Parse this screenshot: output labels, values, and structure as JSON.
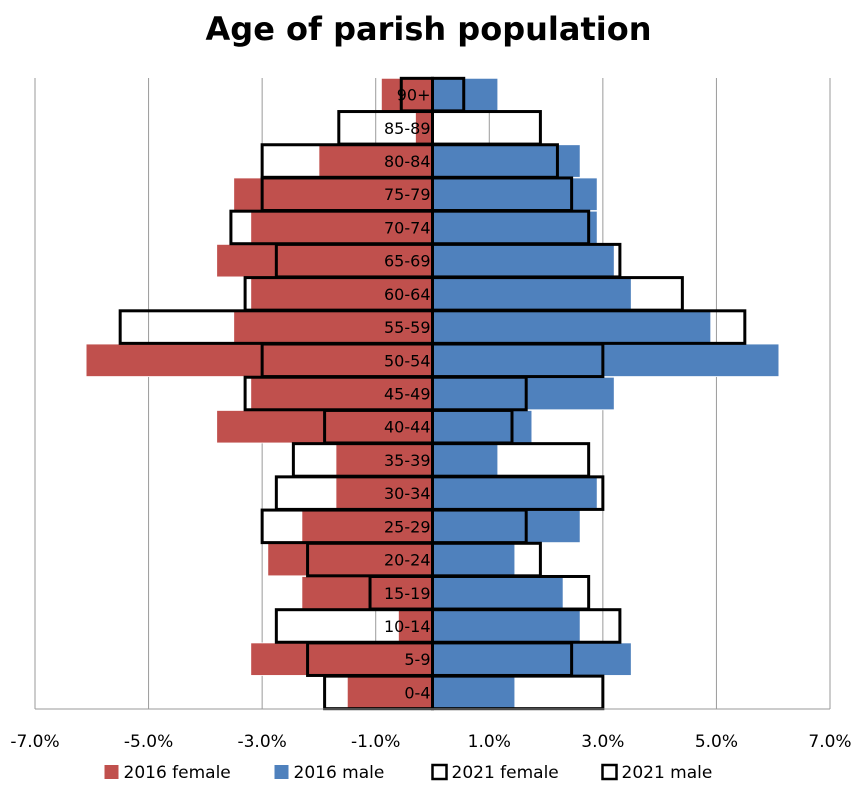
{
  "chart_data": {
    "type": "bar",
    "orientation": "horizontal",
    "title": "Age of parish population",
    "xlabel": "",
    "ylabel": "",
    "xlim": [
      -7.0,
      7.0
    ],
    "xticks": [
      "-7.0%",
      "-5.0%",
      "-3.0%",
      "-1.0%",
      "1.0%",
      "3.0%",
      "5.0%",
      "7.0%"
    ],
    "xtick_values": [
      -7,
      -5,
      -3,
      -1,
      1,
      3,
      5,
      7
    ],
    "grid": "vertical",
    "legend": "bottom",
    "categories": [
      "90+",
      "85-89",
      "80-84",
      "75-79",
      "70-74",
      "65-69",
      "60-64",
      "55-59",
      "50-54",
      "45-49",
      "40-44",
      "35-39",
      "30-34",
      "25-29",
      "20-24",
      "15-19",
      "10-14",
      "5-9",
      "0-4"
    ],
    "series": [
      {
        "name": "2016 female",
        "style": "filled",
        "color": "#c0504d",
        "values": [
          -0.9,
          -0.3,
          -2.0,
          -3.5,
          -3.2,
          -3.8,
          -3.2,
          -3.5,
          -6.1,
          -3.2,
          -3.8,
          -1.7,
          -1.7,
          -2.3,
          -2.9,
          -2.3,
          -0.6,
          -3.2,
          -1.5
        ]
      },
      {
        "name": "2016 male",
        "style": "filled",
        "color": "#4f81bd",
        "values": [
          1.15,
          0.0,
          2.6,
          2.9,
          2.9,
          3.2,
          3.5,
          4.9,
          6.1,
          3.2,
          1.75,
          1.15,
          2.9,
          2.6,
          1.45,
          2.3,
          2.6,
          3.5,
          1.45
        ]
      },
      {
        "name": "2021 female",
        "style": "outline",
        "color": "#000000",
        "values": [
          -0.55,
          -1.65,
          -3.0,
          -3.0,
          -3.55,
          -2.75,
          -3.3,
          -5.5,
          -3.0,
          -3.3,
          -1.9,
          -2.45,
          -2.75,
          -3.0,
          -2.2,
          -1.1,
          -2.75,
          -2.2,
          -1.9
        ]
      },
      {
        "name": "2021 male",
        "style": "outline",
        "color": "#000000",
        "values": [
          0.55,
          1.9,
          2.2,
          2.45,
          2.75,
          3.3,
          4.4,
          5.5,
          3.0,
          1.65,
          1.4,
          2.75,
          3.0,
          1.65,
          1.9,
          2.75,
          3.3,
          2.45,
          3.0
        ]
      }
    ]
  }
}
